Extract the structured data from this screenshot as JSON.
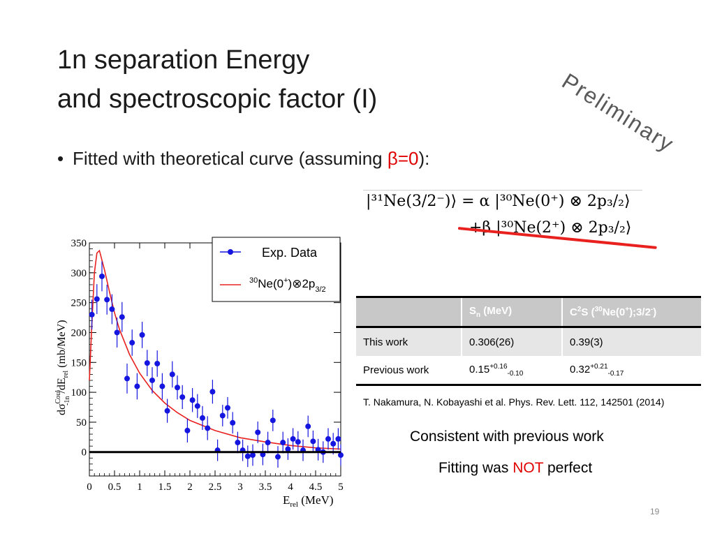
{
  "slide": {
    "title_line1": "1n separation Energy",
    "title_line2": "and spectroscopic factor (I)",
    "preliminary_stamp": "Preliminary",
    "bullet_prefix": "Fitted with theoretical curve (assuming ",
    "bullet_highlight": "β=0",
    "bullet_suffix": "):",
    "page_number": "19"
  },
  "equation": {
    "line1": "|³¹Ne(3/2⁻)⟩ = α |³⁰Ne(0⁺) ⊗ 2p₃/₂⟩",
    "line2": "+β |³⁰Ne(2⁺) ⊗ 2p₃/₂⟩"
  },
  "table": {
    "headers": [
      "",
      "Sn (MeV)",
      "C2S (30Ne(0+);3/2-)"
    ],
    "rows": [
      {
        "label": "This work",
        "sn": "0.306(26)",
        "c2s": "0.39(3)"
      },
      {
        "label": "Previous work",
        "sn_base": "0.15",
        "sn_up": "+0.16",
        "sn_down": "-0.10",
        "c2s_base": "0.32",
        "c2s_up": "+0.21",
        "c2s_down": "-0.17"
      }
    ]
  },
  "reference": "T. Nakamura, N. Kobayashi et al. Phys. Rev. Lett. 112, 142501 (2014)",
  "conclusion": {
    "line1": "Consistent with previous work",
    "line2_prefix": "Fitting was ",
    "line2_highlight": "NOT",
    "line2_suffix": " perfect"
  },
  "colors": {
    "data_points": "#1515e0",
    "fit_curve": "#e8201e",
    "highlight": "#e00000",
    "strike": "#e8201e"
  },
  "chart_data": {
    "type": "scatter",
    "xlabel": "E_rel (MeV)",
    "ylabel": "dσ^Coul_-1n/dE_rel (mb/MeV)",
    "xlim": [
      0,
      5
    ],
    "ylim": [
      -40,
      350
    ],
    "xticks": [
      "0",
      "0.5",
      "1",
      "1.5",
      "2",
      "2.5",
      "3",
      "3.5",
      "4",
      "4.5",
      "5"
    ],
    "yticks": [
      "0",
      "50",
      "100",
      "150",
      "200",
      "250",
      "300",
      "350"
    ],
    "zero_line": true,
    "legend": {
      "position": "top-right",
      "data_label": "Exp. Data",
      "fit_label_prefix": "30",
      "fit_label_main": "Ne(0",
      "fit_label_sup": "+",
      "fit_label_mid": ")⊗2p",
      "fit_label_sub": "3/2"
    },
    "series": [
      {
        "name": "Exp. Data",
        "points": [
          {
            "x": 0.05,
            "y": 230,
            "err": 25
          },
          {
            "x": 0.15,
            "y": 256,
            "err": 25
          },
          {
            "x": 0.25,
            "y": 294,
            "err": 25
          },
          {
            "x": 0.35,
            "y": 255,
            "err": 25
          },
          {
            "x": 0.45,
            "y": 239,
            "err": 25
          },
          {
            "x": 0.55,
            "y": 200,
            "err": 25
          },
          {
            "x": 0.65,
            "y": 226,
            "err": 25
          },
          {
            "x": 0.75,
            "y": 123,
            "err": 25
          },
          {
            "x": 0.85,
            "y": 183,
            "err": 22
          },
          {
            "x": 0.95,
            "y": 110,
            "err": 22
          },
          {
            "x": 1.05,
            "y": 196,
            "err": 22
          },
          {
            "x": 1.15,
            "y": 149,
            "err": 22
          },
          {
            "x": 1.25,
            "y": 120,
            "err": 22
          },
          {
            "x": 1.35,
            "y": 148,
            "err": 22
          },
          {
            "x": 1.45,
            "y": 110,
            "err": 22
          },
          {
            "x": 1.55,
            "y": 69,
            "err": 20
          },
          {
            "x": 1.65,
            "y": 130,
            "err": 22
          },
          {
            "x": 1.75,
            "y": 108,
            "err": 20
          },
          {
            "x": 1.85,
            "y": 92,
            "err": 20
          },
          {
            "x": 1.95,
            "y": 36,
            "err": 20
          },
          {
            "x": 2.05,
            "y": 87,
            "err": 20
          },
          {
            "x": 2.15,
            "y": 77,
            "err": 20
          },
          {
            "x": 2.25,
            "y": 57,
            "err": 20
          },
          {
            "x": 2.35,
            "y": 40,
            "err": 20
          },
          {
            "x": 2.45,
            "y": 101,
            "err": 20
          },
          {
            "x": 2.55,
            "y": 3,
            "err": 18
          },
          {
            "x": 2.65,
            "y": 61,
            "err": 18
          },
          {
            "x": 2.75,
            "y": 74,
            "err": 18
          },
          {
            "x": 2.85,
            "y": 49,
            "err": 18
          },
          {
            "x": 2.95,
            "y": 16,
            "err": 18
          },
          {
            "x": 3.05,
            "y": 3,
            "err": 18
          },
          {
            "x": 3.15,
            "y": -7,
            "err": 18
          },
          {
            "x": 3.25,
            "y": -5,
            "err": 18
          },
          {
            "x": 3.35,
            "y": 33,
            "err": 18
          },
          {
            "x": 3.45,
            "y": -4,
            "err": 18
          },
          {
            "x": 3.55,
            "y": 16,
            "err": 18
          },
          {
            "x": 3.65,
            "y": 53,
            "err": 18
          },
          {
            "x": 3.75,
            "y": -8,
            "err": 18
          },
          {
            "x": 3.85,
            "y": 16,
            "err": 18
          },
          {
            "x": 3.95,
            "y": 5,
            "err": 18
          },
          {
            "x": 4.05,
            "y": 22,
            "err": 18
          },
          {
            "x": 4.15,
            "y": 17,
            "err": 18
          },
          {
            "x": 4.25,
            "y": 3,
            "err": 18
          },
          {
            "x": 4.35,
            "y": 43,
            "err": 18
          },
          {
            "x": 4.45,
            "y": 18,
            "err": 18
          },
          {
            "x": 4.55,
            "y": 4,
            "err": 18
          },
          {
            "x": 4.65,
            "y": 0,
            "err": 18
          },
          {
            "x": 4.75,
            "y": 22,
            "err": 18
          },
          {
            "x": 4.85,
            "y": 14,
            "err": 18
          },
          {
            "x": 4.95,
            "y": 22,
            "err": 18
          },
          {
            "x": 5.0,
            "y": -5,
            "err": 18
          }
        ]
      },
      {
        "name": "30Ne(0+)⊗2p3/2",
        "type": "line",
        "points": [
          {
            "x": 0.0,
            "y": 120
          },
          {
            "x": 0.05,
            "y": 215
          },
          {
            "x": 0.1,
            "y": 300
          },
          {
            "x": 0.15,
            "y": 333
          },
          {
            "x": 0.2,
            "y": 337
          },
          {
            "x": 0.3,
            "y": 305
          },
          {
            "x": 0.4,
            "y": 268
          },
          {
            "x": 0.5,
            "y": 233
          },
          {
            "x": 0.6,
            "y": 205
          },
          {
            "x": 0.8,
            "y": 163
          },
          {
            "x": 1.0,
            "y": 132
          },
          {
            "x": 1.25,
            "y": 103
          },
          {
            "x": 1.5,
            "y": 82
          },
          {
            "x": 1.75,
            "y": 66
          },
          {
            "x": 2.0,
            "y": 53
          },
          {
            "x": 2.5,
            "y": 36
          },
          {
            "x": 3.0,
            "y": 24
          },
          {
            "x": 3.5,
            "y": 17
          },
          {
            "x": 4.0,
            "y": 11
          },
          {
            "x": 4.5,
            "y": 7
          },
          {
            "x": 5.0,
            "y": 5
          }
        ]
      }
    ]
  }
}
